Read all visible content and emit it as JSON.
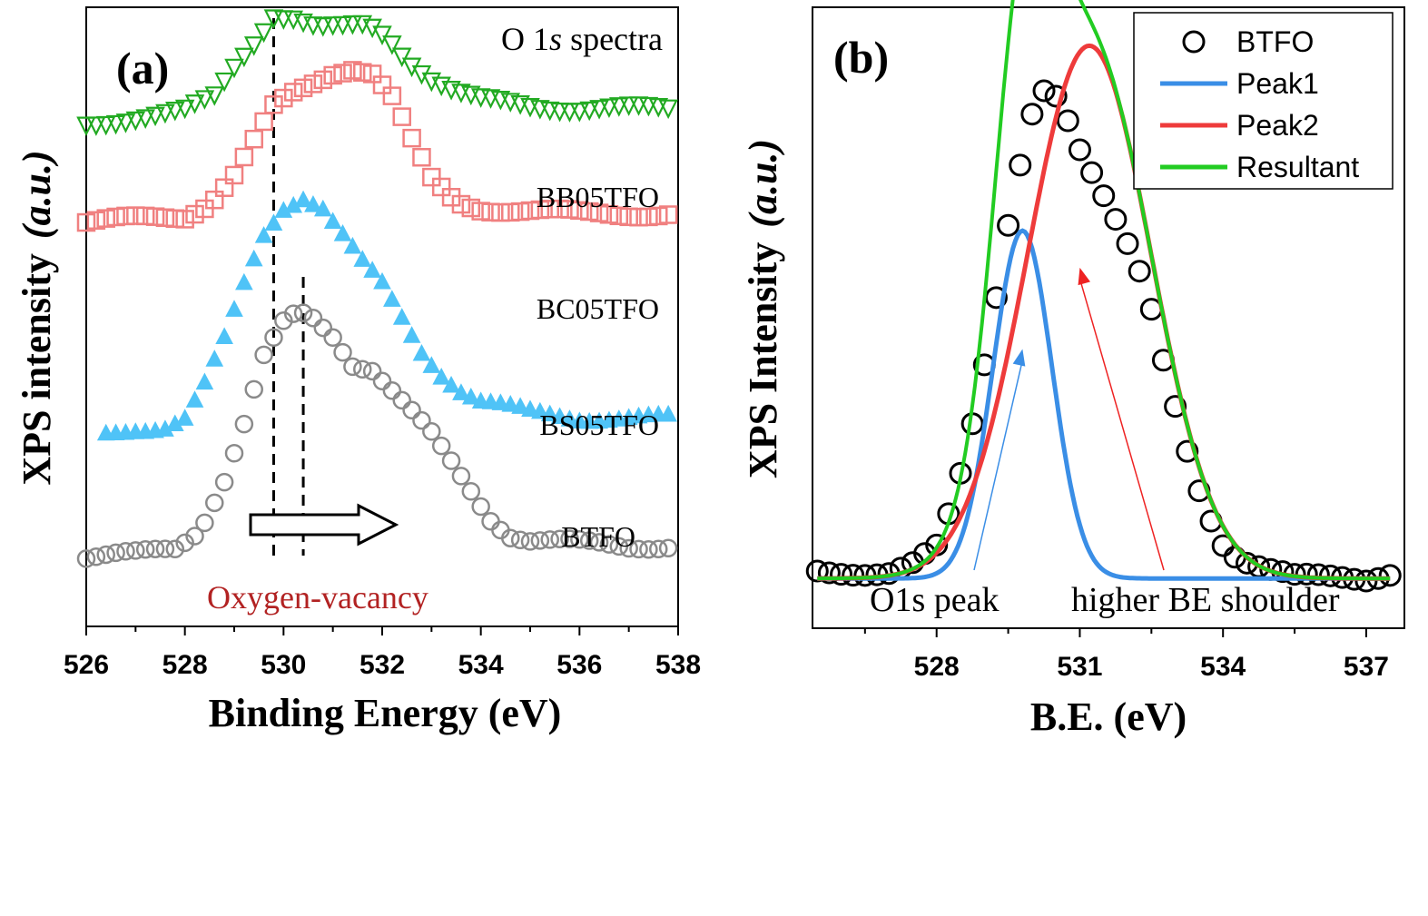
{
  "chart_data": [
    {
      "type": "scatter",
      "panel_label": "(a)",
      "title": "O 1s spectra",
      "title_parts": [
        "O 1",
        "s",
        " spectra"
      ],
      "xlabel": "Binding Energy (eV)",
      "ylabel": "XPS intensity",
      "ylabel_unit": "(a.u.)",
      "xlim": [
        526,
        538
      ],
      "ylim": [
        0,
        1
      ],
      "x_ticks": [
        "526",
        "528",
        "530",
        "532",
        "534",
        "536",
        "538"
      ],
      "y_ticks": [],
      "grid": false,
      "annotations": {
        "vacancy_text": "Oxygen-vacancy",
        "vacancy_color": "#b22222",
        "dashed_lines_x": [
          529.8,
          530.4
        ],
        "arrow_direction": "right"
      },
      "series": [
        {
          "name": "BB05TFO",
          "marker": "triangle-down",
          "color": "#22aa22",
          "x": [
            526.0,
            527.0,
            528.0,
            528.6,
            529.0,
            529.4,
            529.8,
            530.2,
            530.7,
            531.2,
            531.7,
            532.1,
            532.5,
            533.0,
            533.5,
            534.0,
            535.0,
            536.0,
            537.0,
            537.8
          ],
          "y": [
            0.84,
            0.855,
            0.865,
            0.89,
            0.945,
            0.99,
            1.04,
            1.035,
            1.015,
            1.015,
            1.02,
            1.0,
            0.96,
            0.925,
            0.9,
            0.885,
            0.875,
            0.87,
            0.87,
            0.87
          ]
        },
        {
          "name": "BC05TFO",
          "marker": "square",
          "color": "#f08080",
          "x": [
            526.0,
            527.0,
            528.0,
            528.5,
            529.0,
            529.4,
            529.8,
            530.2,
            530.6,
            531.0,
            531.4,
            531.8,
            532.2,
            532.6,
            533.0,
            533.5,
            534.0,
            535.0,
            536.0,
            537.0,
            537.8
          ],
          "y": [
            0.665,
            0.67,
            0.675,
            0.7,
            0.75,
            0.81,
            0.87,
            0.895,
            0.915,
            0.935,
            0.945,
            0.935,
            0.89,
            0.81,
            0.74,
            0.7,
            0.69,
            0.685,
            0.68,
            0.68,
            0.68
          ]
        },
        {
          "name": "BS05TFO",
          "marker": "triangle-up",
          "color": "#4fc3f7",
          "x": [
            526.4,
            527.0,
            527.6,
            528.0,
            528.4,
            528.8,
            529.2,
            529.6,
            530.0,
            530.4,
            530.8,
            531.2,
            531.6,
            532.0,
            532.4,
            532.8,
            533.2,
            533.6,
            534.0,
            535.0,
            536.0,
            537.0,
            537.8
          ],
          "y": [
            0.28,
            0.29,
            0.295,
            0.31,
            0.37,
            0.45,
            0.55,
            0.64,
            0.69,
            0.71,
            0.69,
            0.64,
            0.59,
            0.55,
            0.49,
            0.43,
            0.39,
            0.36,
            0.34,
            0.32,
            0.31,
            0.31,
            0.31
          ]
        },
        {
          "name": "BTFO",
          "marker": "circle",
          "color": "#8a8a8a",
          "x": [
            526.0,
            527.0,
            527.8,
            528.3,
            528.8,
            529.2,
            529.6,
            530.0,
            530.3,
            530.6,
            531.0,
            531.4,
            531.8,
            532.2,
            532.6,
            533.0,
            533.4,
            533.8,
            534.2,
            534.6,
            535.0,
            536.0,
            537.0,
            537.8
          ],
          "y": [
            0.06,
            0.065,
            0.075,
            0.11,
            0.2,
            0.3,
            0.42,
            0.48,
            0.5,
            0.49,
            0.46,
            0.41,
            0.4,
            0.36,
            0.32,
            0.28,
            0.23,
            0.18,
            0.13,
            0.1,
            0.09,
            0.085,
            0.08,
            0.08
          ]
        }
      ]
    },
    {
      "type": "scatter",
      "panel_label": "(b)",
      "xlabel": "B.E. (eV)",
      "ylabel": "XPS Intensity",
      "ylabel_unit": "(a.u.)",
      "xlim": [
        525.4,
        537.8
      ],
      "ylim": [
        0,
        1
      ],
      "x_ticks": [
        "528",
        "531",
        "534",
        "537"
      ],
      "y_ticks": [],
      "grid": false,
      "legend": {
        "placement": "top-right",
        "entries": [
          {
            "label": "BTFO",
            "type": "marker",
            "color": "#000000"
          },
          {
            "label": "Peak1",
            "type": "line",
            "color": "#3a8ee6"
          },
          {
            "label": "Peak2",
            "type": "line",
            "color": "#ee3b3b"
          },
          {
            "label": "Resultant",
            "type": "line",
            "color": "#22cc22"
          }
        ]
      },
      "annotations": [
        {
          "text": "O1s peak",
          "color": "#3a8ee6",
          "points_to": [
            529.8,
            0.63
          ]
        },
        {
          "text": "higher BE shoulder",
          "color": "#ee2222",
          "points_to": [
            531.0,
            0.74
          ]
        }
      ],
      "baseline": 0.32,
      "peaks": [
        {
          "name": "Peak1",
          "center": 529.8,
          "height": 0.47,
          "sigma": 0.62
        },
        {
          "name": "Peak2",
          "center": 531.2,
          "height": 0.72,
          "sigma": 1.3
        }
      ],
      "series": [
        {
          "name": "BTFO",
          "marker": "circle",
          "color": "#000000",
          "x": [
            525.5,
            526.0,
            526.5,
            527.0,
            527.5,
            528.0,
            528.3,
            528.6,
            528.9,
            529.2,
            529.5,
            529.8,
            530.1,
            530.4,
            530.7,
            531.0,
            531.3,
            531.6,
            531.9,
            532.2,
            532.5,
            532.8,
            533.1,
            533.4,
            533.7,
            534.0,
            534.3,
            534.6,
            535.0,
            535.5,
            536.0,
            536.5,
            537.0,
            537.5
          ],
          "y": [
            0.33,
            0.33,
            0.33,
            0.33,
            0.34,
            0.36,
            0.41,
            0.48,
            0.57,
            0.68,
            0.8,
            0.9,
            0.98,
            0.99,
            0.95,
            0.9,
            0.86,
            0.82,
            0.78,
            0.74,
            0.68,
            0.6,
            0.53,
            0.46,
            0.41,
            0.37,
            0.35,
            0.34,
            0.33,
            0.32,
            0.32,
            0.32,
            0.32,
            0.33
          ]
        }
      ]
    }
  ]
}
